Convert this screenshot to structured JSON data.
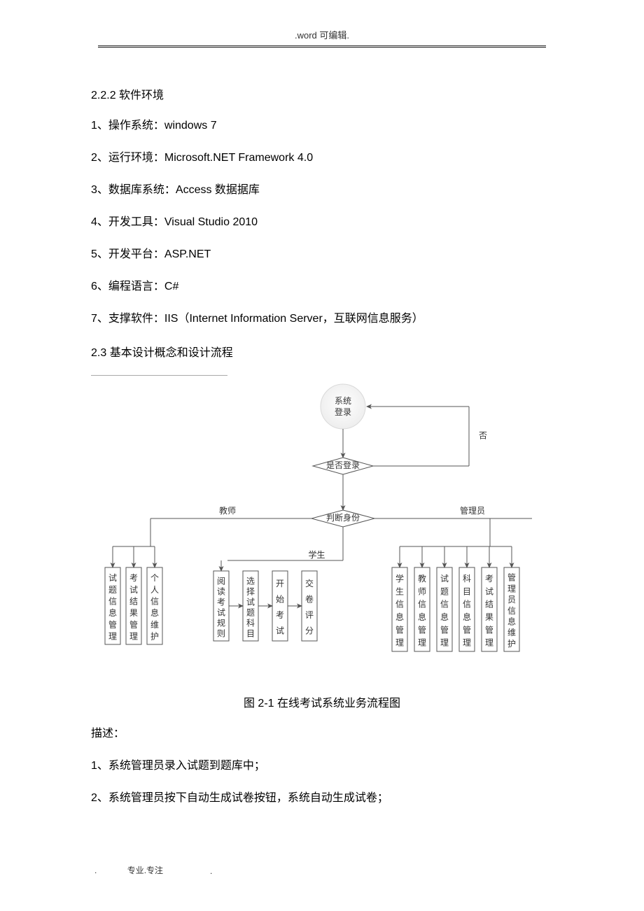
{
  "header": {
    "text": ".word 可编辑."
  },
  "footer": {
    "left": "专业.专注",
    "dot": "."
  },
  "headings": {
    "s222": "2.2.2 软件环境",
    "s23": "2.3 基本设计概念和设计流程"
  },
  "paragraphs": {
    "p1": "1、操作系统：windows 7",
    "p2": "2、运行环境：Microsoft.NET Framework 4.0",
    "p3": "3、数据库系统：Access 数据据库",
    "p4": "4、开发工具：Visual Studio 2010",
    "p5": "5、开发平台：ASP.NET",
    "p6": "6、编程语言：C#",
    "p7": "7、支撑软件：IIS（Internet Information Server，互联网信息服务）",
    "caption": "图 2-1 在线考试系统业务流程图",
    "desc_label": "描述：",
    "d1": "1、系统管理员录入试题到题库中；",
    "d2": "2、系统管理员按下自动生成试卷按钮，系统自动生成试卷；"
  },
  "flowchart": {
    "type": "flowchart",
    "colors": {
      "stroke": "#555555",
      "text": "#333333",
      "circle_fill": "#f8f8f8",
      "circle_edge": "#d9d9d9",
      "diamond_fill": "#ffffff",
      "box_fill": "#ffffff"
    },
    "font_size": 12,
    "vbox_font_size": 12,
    "nodes": {
      "login": {
        "label_l1": "系统",
        "label_l2": "登录"
      },
      "is_logged": {
        "label": "是否登录"
      },
      "no_label": "否",
      "role": {
        "label": "判断身份"
      },
      "branch_teacher": "教师",
      "branch_student": "学生",
      "branch_admin": "管理员"
    },
    "teacher_boxes": [
      "试题信息管理",
      "考试结果管理",
      "个人信息维护"
    ],
    "student_boxes": [
      "阅读考试规则",
      "选择试题科目",
      "开始考试",
      "交卷评分"
    ],
    "admin_boxes": [
      "学生信息管理",
      "教师信息管理",
      "试题信息管理",
      "科目信息管理",
      "考试结果管理",
      "管理员信息维护"
    ]
  }
}
